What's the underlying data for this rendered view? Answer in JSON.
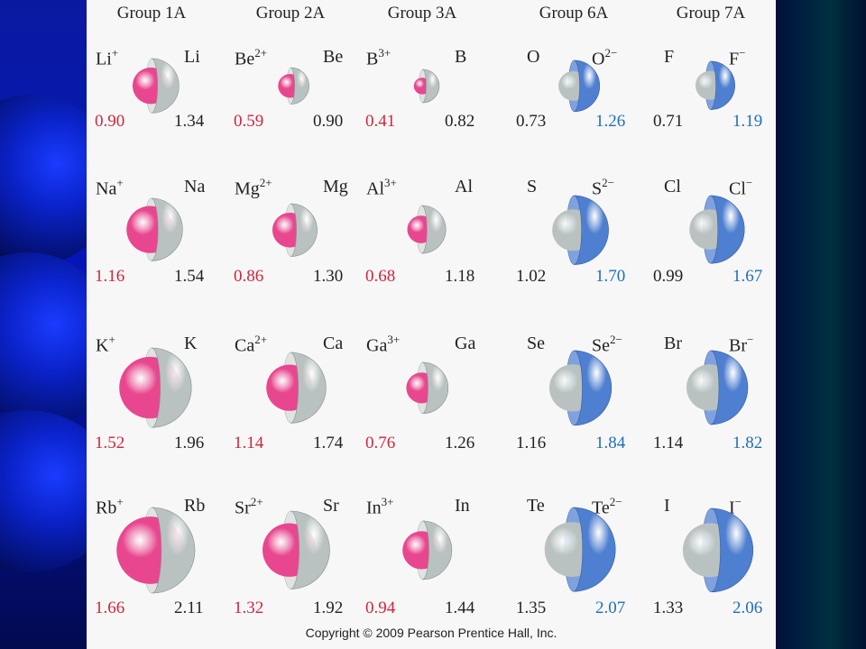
{
  "groups": [
    {
      "header": "Group 1A",
      "rows": [
        {
          "ion": "Li",
          "ion_charge": "+",
          "atom": "Li",
          "ion_radius": "0.90",
          "atom_radius": "1.34"
        },
        {
          "ion": "Na",
          "ion_charge": "+",
          "atom": "Na",
          "ion_radius": "1.16",
          "atom_radius": "1.54"
        },
        {
          "ion": "K",
          "ion_charge": "+",
          "atom": "K",
          "ion_radius": "1.52",
          "atom_radius": "1.96"
        },
        {
          "ion": "Rb",
          "ion_charge": "+",
          "atom": "Rb",
          "ion_radius": "1.66",
          "atom_radius": "2.11"
        }
      ]
    },
    {
      "header": "Group 2A",
      "rows": [
        {
          "ion": "Be",
          "ion_charge": "2+",
          "atom": "Be",
          "ion_radius": "0.59",
          "atom_radius": "0.90"
        },
        {
          "ion": "Mg",
          "ion_charge": "2+",
          "atom": "Mg",
          "ion_radius": "0.86",
          "atom_radius": "1.30"
        },
        {
          "ion": "Ca",
          "ion_charge": "2+",
          "atom": "Ca",
          "ion_radius": "1.14",
          "atom_radius": "1.74"
        },
        {
          "ion": "Sr",
          "ion_charge": "2+",
          "atom": "Sr",
          "ion_radius": "1.32",
          "atom_radius": "1.92"
        }
      ]
    },
    {
      "header": "Group 3A",
      "rows": [
        {
          "ion": "B",
          "ion_charge": "3+",
          "atom": "B",
          "ion_radius": "0.41",
          "atom_radius": "0.82"
        },
        {
          "ion": "Al",
          "ion_charge": "3+",
          "atom": "Al",
          "ion_radius": "0.68",
          "atom_radius": "1.18"
        },
        {
          "ion": "Ga",
          "ion_charge": "3+",
          "atom": "Ga",
          "ion_radius": "0.76",
          "atom_radius": "1.26"
        },
        {
          "ion": "In",
          "ion_charge": "3+",
          "atom": "In",
          "ion_radius": "0.94",
          "atom_radius": "1.44"
        }
      ]
    },
    {
      "header": "Group 6A",
      "rows": [
        {
          "atom": "O",
          "ion": "O",
          "ion_charge": "2−",
          "atom_radius": "0.73",
          "ion_radius": "1.26"
        },
        {
          "atom": "S",
          "ion": "S",
          "ion_charge": "2−",
          "atom_radius": "1.02",
          "ion_radius": "1.70"
        },
        {
          "atom": "Se",
          "ion": "Se",
          "ion_charge": "2−",
          "atom_radius": "1.16",
          "ion_radius": "1.84"
        },
        {
          "atom": "Te",
          "ion": "Te",
          "ion_charge": "2−",
          "atom_radius": "1.35",
          "ion_radius": "2.07"
        }
      ]
    },
    {
      "header": "Group 7A",
      "rows": [
        {
          "atom": "F",
          "ion": "F",
          "ion_charge": "−",
          "atom_radius": "0.71",
          "ion_radius": "1.19"
        },
        {
          "atom": "Cl",
          "ion": "Cl",
          "ion_charge": "−",
          "atom_radius": "0.99",
          "ion_radius": "1.67"
        },
        {
          "atom": "Br",
          "ion": "Br",
          "ion_charge": "−",
          "atom_radius": "1.14",
          "ion_radius": "1.82"
        },
        {
          "atom": "I",
          "ion": "I",
          "ion_charge": "−",
          "atom_radius": "1.33",
          "ion_radius": "2.06"
        }
      ]
    }
  ],
  "colors": {
    "cation": "#e8478f",
    "neutral": "#b9c2c0",
    "anion": "#4f7fd0"
  },
  "copyright": "Copyright © 2009 Pearson Prentice Hall, Inc."
}
